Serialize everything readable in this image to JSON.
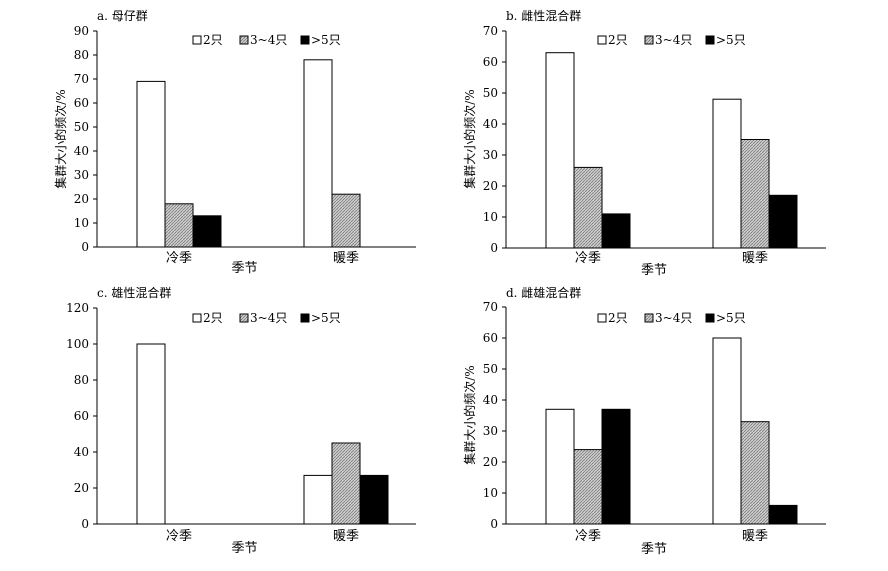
{
  "legend_labels": [
    "2只",
    "3~4只",
    ">5只"
  ],
  "colors": {
    "s0": "#ffffff",
    "s1": "#c8c8c8",
    "s2": "#000000",
    "stroke": "#000000"
  },
  "chart_data": [
    {
      "type": "bar",
      "title": "a. 母仔群",
      "categories": [
        "冷季",
        "暖季"
      ],
      "xlabel": "季节",
      "ylabel": "集群大小的频次/%",
      "ylim": [
        0,
        90
      ],
      "yticks": [
        0,
        10,
        20,
        30,
        40,
        50,
        60,
        70,
        80,
        90
      ],
      "series": [
        {
          "name": "2只",
          "values": [
            69,
            78
          ]
        },
        {
          "name": "3~4只",
          "values": [
            18,
            22
          ]
        },
        {
          "name": ">5只",
          "values": [
            13,
            0
          ]
        }
      ]
    },
    {
      "type": "bar",
      "title": "b. 雌性混合群",
      "categories": [
        "冷季",
        "暖季"
      ],
      "xlabel": "季节",
      "ylabel": "集群大小的频次/%",
      "ylim": [
        0,
        70
      ],
      "yticks": [
        0,
        10,
        20,
        30,
        40,
        50,
        60,
        70
      ],
      "series": [
        {
          "name": "2只",
          "values": [
            63,
            48
          ]
        },
        {
          "name": "3~4只",
          "values": [
            26,
            35
          ]
        },
        {
          "name": ">5只",
          "values": [
            11,
            17
          ]
        }
      ]
    },
    {
      "type": "bar",
      "title": "c. 雄性混合群",
      "categories": [
        "冷季",
        "暖季"
      ],
      "xlabel": "季节",
      "ylabel": "",
      "ylim": [
        0,
        120
      ],
      "yticks": [
        0,
        20,
        40,
        60,
        80,
        100,
        120
      ],
      "series": [
        {
          "name": "2只",
          "values": [
            100,
            27
          ]
        },
        {
          "name": "3~4只",
          "values": [
            0,
            45
          ]
        },
        {
          "name": ">5只",
          "values": [
            0,
            27
          ]
        }
      ]
    },
    {
      "type": "bar",
      "title": "d. 雌雄混合群",
      "categories": [
        "冷季",
        "暖季"
      ],
      "xlabel": "季节",
      "ylabel": "集群大小的频次/%",
      "ylim": [
        0,
        70
      ],
      "yticks": [
        0,
        10,
        20,
        30,
        40,
        50,
        60,
        70
      ],
      "series": [
        {
          "name": "2只",
          "values": [
            37,
            60
          ]
        },
        {
          "name": "3~4只",
          "values": [
            24,
            33
          ]
        },
        {
          "name": ">5只",
          "values": [
            37,
            6
          ]
        }
      ]
    }
  ]
}
